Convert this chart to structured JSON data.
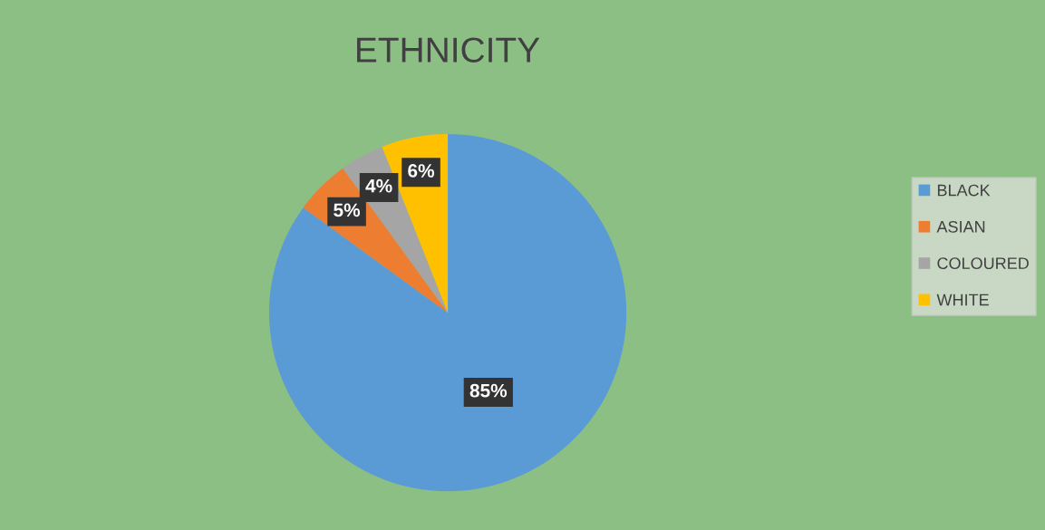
{
  "chart_data": {
    "type": "pie",
    "title": "ETHNICITY",
    "categories": [
      "BLACK",
      "ASIAN",
      "COLOURED",
      "WHITE"
    ],
    "values": [
      85,
      5,
      4,
      6
    ],
    "value_labels": [
      "85%",
      "5%",
      "4%",
      "6%"
    ],
    "colors": [
      "#5b9bd5",
      "#ed7d31",
      "#a5a5a5",
      "#ffc000"
    ],
    "legend": "right"
  }
}
